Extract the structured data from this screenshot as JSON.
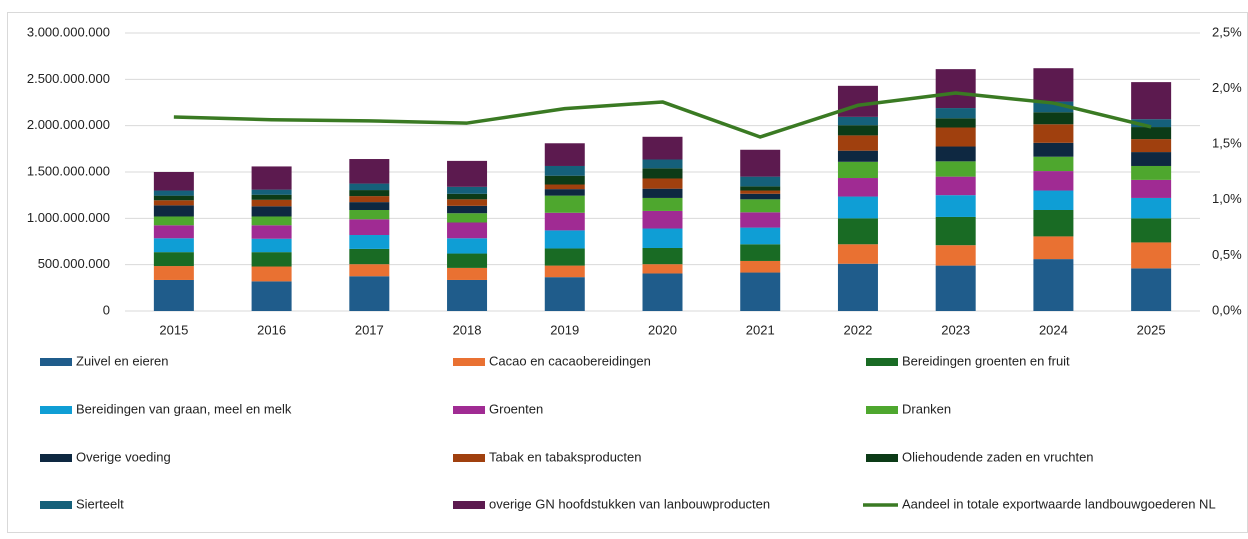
{
  "chart_data": {
    "type": "stacked-bar-line",
    "categories": [
      "2015",
      "2016",
      "2017",
      "2018",
      "2019",
      "2020",
      "2021",
      "2022",
      "2023",
      "2024",
      "2025"
    ],
    "series": [
      {
        "name": "Zuivel en eieren",
        "color": "#1f5c8b",
        "values": [
          335000000,
          320000000,
          375000000,
          335000000,
          365000000,
          405000000,
          415000000,
          510000000,
          490000000,
          560000000,
          460000000
        ]
      },
      {
        "name": "Cacao en cacaobereidingen",
        "color": "#e97132",
        "values": [
          150000000,
          160000000,
          130000000,
          130000000,
          125000000,
          100000000,
          125000000,
          210000000,
          220000000,
          245000000,
          280000000
        ]
      },
      {
        "name": "Bereidingen groenten en fruit",
        "color": "#196b24",
        "values": [
          150000000,
          155000000,
          165000000,
          155000000,
          185000000,
          175000000,
          180000000,
          280000000,
          305000000,
          285000000,
          260000000
        ]
      },
      {
        "name": "Bereidingen van graan, meel en melk",
        "color": "#0f9ed5",
        "values": [
          150000000,
          145000000,
          150000000,
          165000000,
          195000000,
          210000000,
          180000000,
          235000000,
          235000000,
          210000000,
          220000000
        ]
      },
      {
        "name": "Groenten",
        "color": "#a02b93",
        "values": [
          140000000,
          145000000,
          170000000,
          170000000,
          190000000,
          190000000,
          165000000,
          200000000,
          200000000,
          210000000,
          195000000
        ]
      },
      {
        "name": "Dranken",
        "color": "#4ea72e",
        "values": [
          95000000,
          95000000,
          100000000,
          100000000,
          185000000,
          140000000,
          140000000,
          175000000,
          165000000,
          155000000,
          150000000
        ]
      },
      {
        "name": "Overige voeding",
        "color": "#0e2841",
        "values": [
          120000000,
          110000000,
          85000000,
          80000000,
          70000000,
          100000000,
          60000000,
          120000000,
          160000000,
          150000000,
          150000000
        ]
      },
      {
        "name": "Tabak en tabaksproducten",
        "color": "#a0400e",
        "values": [
          55000000,
          70000000,
          65000000,
          70000000,
          50000000,
          110000000,
          35000000,
          165000000,
          205000000,
          200000000,
          140000000
        ]
      },
      {
        "name": "Oliehoudende zaden en vruchten",
        "color": "#0c3b17",
        "values": [
          50000000,
          55000000,
          65000000,
          60000000,
          95000000,
          110000000,
          45000000,
          110000000,
          100000000,
          130000000,
          130000000
        ]
      },
      {
        "name": "Sierteelt",
        "color": "#15607a",
        "values": [
          55000000,
          55000000,
          70000000,
          75000000,
          105000000,
          95000000,
          105000000,
          90000000,
          110000000,
          115000000,
          85000000
        ]
      },
      {
        "name": "overige GN hoofdstukken van lanbouwproducten",
        "color": "#5c1a4f",
        "values": [
          200000000,
          250000000,
          265000000,
          280000000,
          245000000,
          245000000,
          290000000,
          335000000,
          420000000,
          360000000,
          400000000
        ]
      },
      {
        "name": "Aandeel in totale exportwaarde landbouwgoederen NL",
        "color": "#3a7a23",
        "axis": "y2",
        "values": [
          1.745,
          1.72,
          1.71,
          1.69,
          1.82,
          1.88,
          1.565,
          1.85,
          1.96,
          1.87,
          1.655
        ]
      }
    ],
    "ylim": [
      0,
      3000000000
    ],
    "yticks": [
      0,
      {
        "value": 500000000,
        "label": "500.000.000"
      },
      {
        "value": 1000000000,
        "label": "1.000.000.000"
      },
      {
        "value": 1500000000,
        "label": "1.500.000.000"
      },
      {
        "value": 2000000000,
        "label": "2.000.000.000"
      },
      {
        "value": 2500000000,
        "label": "2.500.000.000"
      },
      {
        "value": 3000000000,
        "label": "3.000.000.000"
      }
    ],
    "y2lim": [
      0,
      2.5
    ],
    "y2ticks": [
      {
        "value": 0,
        "label": "0,0%"
      },
      {
        "value": 0.5,
        "label": "0,5%"
      },
      {
        "value": 1,
        "label": "1,0%"
      },
      {
        "value": 1.5,
        "label": "1,5%"
      },
      {
        "value": 2,
        "label": "2,0%"
      },
      {
        "value": 2.5,
        "label": "2,5%"
      }
    ],
    "grid": true,
    "legend": "bottom"
  }
}
